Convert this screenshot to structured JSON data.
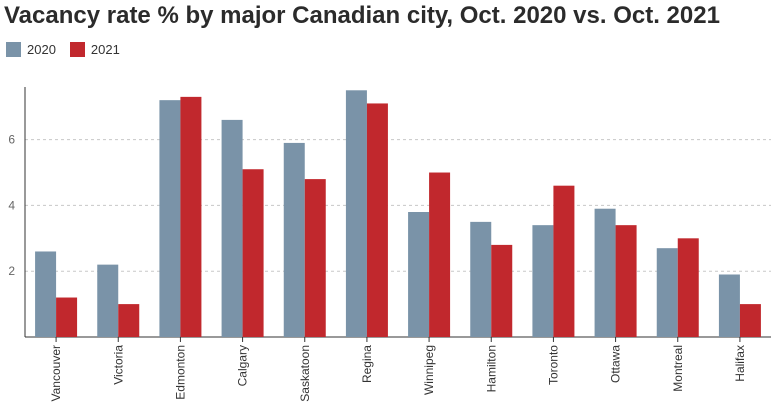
{
  "chart_data": {
    "type": "bar",
    "title": "Vacancy rate % by major Canadian city, Oct. 2020 vs. Oct. 2021",
    "categories": [
      "Vancouver",
      "Victoria",
      "Edmonton",
      "Calgary",
      "Saskatoon",
      "Regina",
      "Winnipeg",
      "Hamilton",
      "Toronto",
      "Ottawa",
      "Montreal",
      "Halifax"
    ],
    "series": [
      {
        "name": "2020",
        "color": "#7a93a8",
        "values": [
          2.6,
          2.2,
          7.2,
          6.6,
          5.9,
          7.5,
          3.8,
          3.5,
          3.4,
          3.9,
          2.7,
          1.9
        ]
      },
      {
        "name": "2021",
        "color": "#c1282d",
        "values": [
          1.2,
          1.0,
          7.3,
          5.1,
          4.8,
          7.1,
          5.0,
          2.8,
          4.6,
          3.4,
          3.0,
          1.0
        ]
      }
    ],
    "yticks": [
      2,
      4,
      6
    ],
    "ylim": [
      0,
      7.6
    ],
    "xlabel": "",
    "ylabel": "",
    "grid": true,
    "legend_position": "top-left"
  }
}
